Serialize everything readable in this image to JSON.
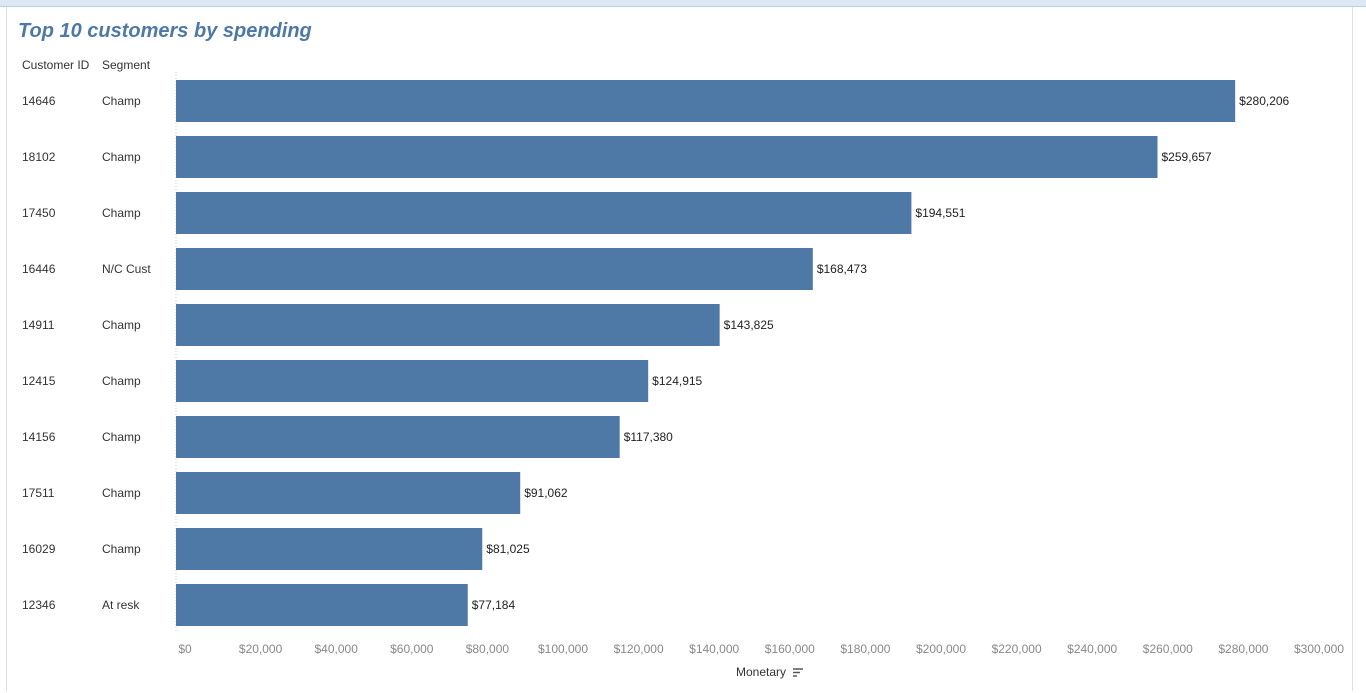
{
  "title": "Top 10 customers by spending",
  "headers": {
    "customer_id": "Customer ID",
    "segment": "Segment"
  },
  "colors": {
    "bar": "#4e79a7",
    "title": "#4e79a7"
  },
  "chart_data": {
    "type": "bar",
    "orientation": "horizontal",
    "rows": [
      {
        "customer_id": "14646",
        "segment": "Champ",
        "value": 280206,
        "label": "$280,206"
      },
      {
        "customer_id": "18102",
        "segment": "Champ",
        "value": 259657,
        "label": "$259,657"
      },
      {
        "customer_id": "17450",
        "segment": "Champ",
        "value": 194551,
        "label": "$194,551"
      },
      {
        "customer_id": "16446",
        "segment": "N/C Cust",
        "value": 168473,
        "label": "$168,473"
      },
      {
        "customer_id": "14911",
        "segment": "Champ",
        "value": 143825,
        "label": "$143,825"
      },
      {
        "customer_id": "12415",
        "segment": "Champ",
        "value": 124915,
        "label": "$124,915"
      },
      {
        "customer_id": "14156",
        "segment": "Champ",
        "value": 117380,
        "label": "$117,380"
      },
      {
        "customer_id": "17511",
        "segment": "Champ",
        "value": 91062,
        "label": "$91,062"
      },
      {
        "customer_id": "16029",
        "segment": "Champ",
        "value": 81025,
        "label": "$81,025"
      },
      {
        "customer_id": "12346",
        "segment": "At resk",
        "value": 77184,
        "label": "$77,184"
      }
    ],
    "xlim": [
      0,
      300000
    ],
    "xticks": [
      0,
      20000,
      40000,
      60000,
      80000,
      100000,
      120000,
      140000,
      160000,
      180000,
      200000,
      220000,
      240000,
      260000,
      280000,
      300000
    ],
    "xtick_labels": [
      "$0",
      "$20,000",
      "$40,000",
      "$60,000",
      "$80,000",
      "$100,000",
      "$120,000",
      "$140,000",
      "$160,000",
      "$180,000",
      "$200,000",
      "$220,000",
      "$240,000",
      "$260,000",
      "$280,000",
      "$300,000"
    ],
    "xlabel": "Monetary",
    "sort_icon": "sort-descending-icon",
    "grid": false
  }
}
